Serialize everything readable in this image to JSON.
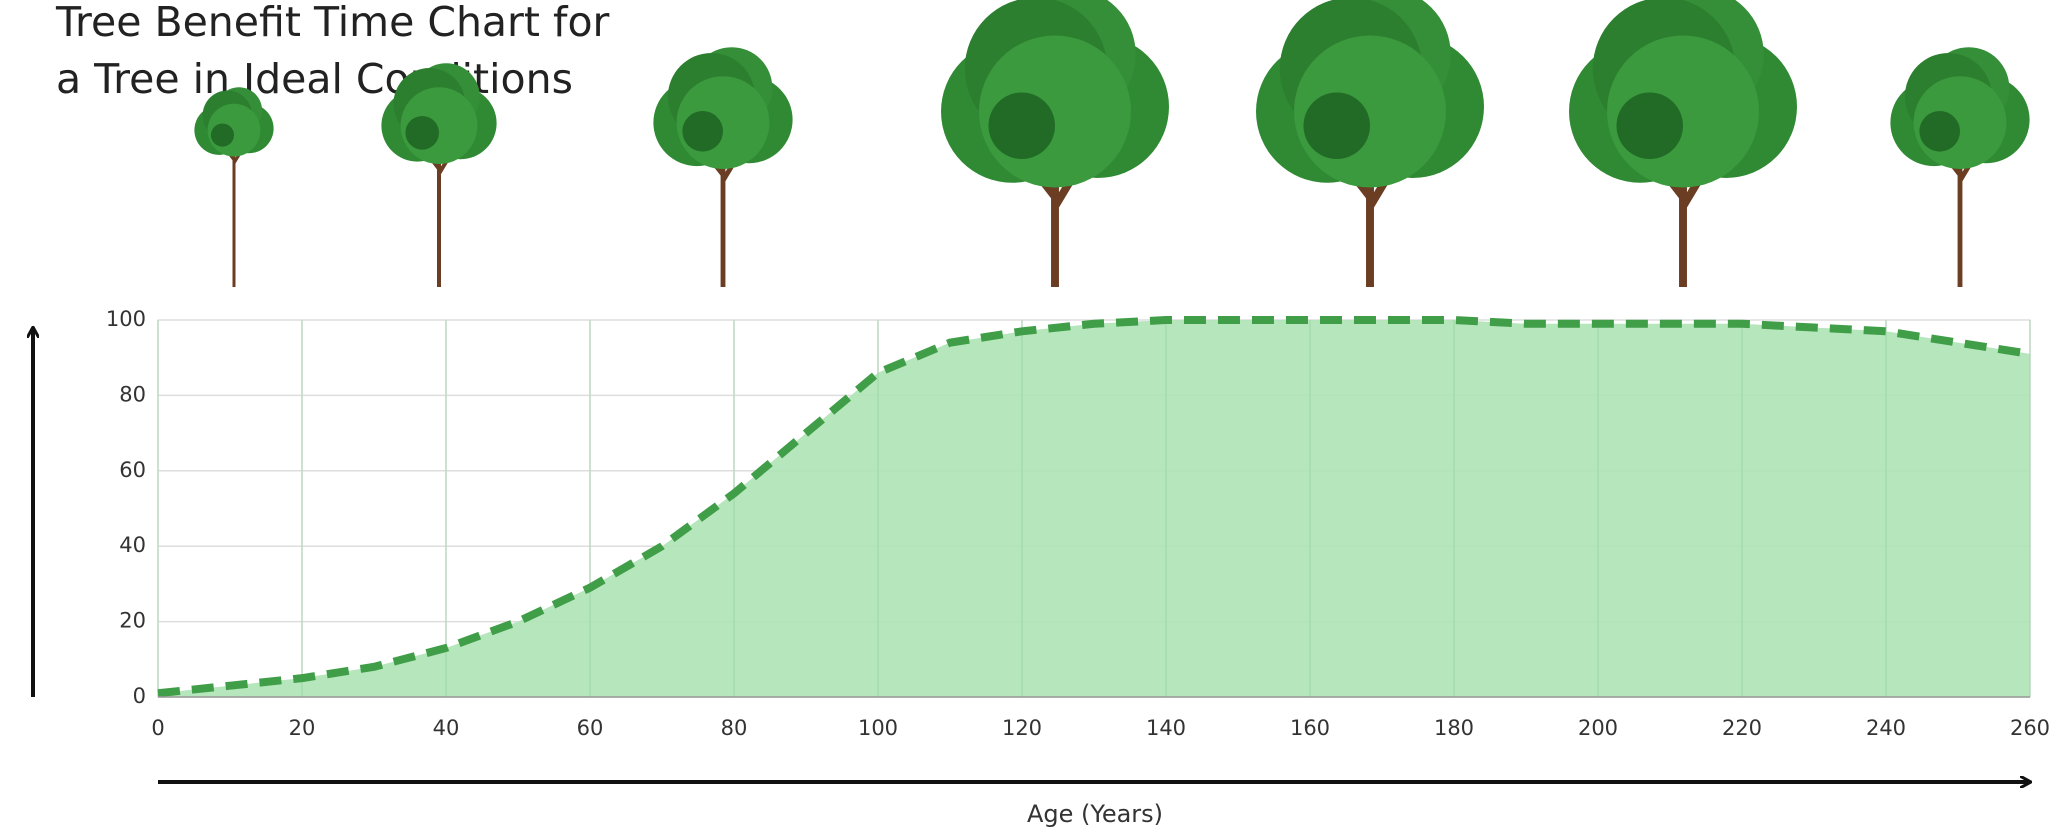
{
  "chart_data": {
    "type": "area",
    "title_lines": [
      "Tree Benefit Time Chart for",
      "a Tree in Ideal Conditions"
    ],
    "x_label": "Age (Years)",
    "x": [
      0,
      10,
      20,
      30,
      40,
      50,
      60,
      70,
      80,
      90,
      100,
      110,
      120,
      130,
      140,
      150,
      160,
      170,
      180,
      190,
      200,
      210,
      220,
      230,
      240,
      250,
      260
    ],
    "values": [
      1,
      3,
      5,
      8,
      13,
      20,
      29,
      40,
      54,
      70,
      86,
      94,
      97,
      99,
      100,
      100,
      100,
      100,
      100,
      99,
      99,
      99,
      99,
      98,
      97,
      94,
      91
    ],
    "color": "#3f9e47",
    "fill_color": "#ade3b5",
    "xlim": [
      0,
      260
    ],
    "xticks": [
      0,
      20,
      40,
      60,
      80,
      100,
      120,
      140,
      160,
      180,
      200,
      220,
      240,
      260
    ],
    "ylim": [
      0,
      100
    ],
    "yticks": [
      0,
      20,
      40,
      60,
      80,
      100
    ],
    "grid": true
  }
}
